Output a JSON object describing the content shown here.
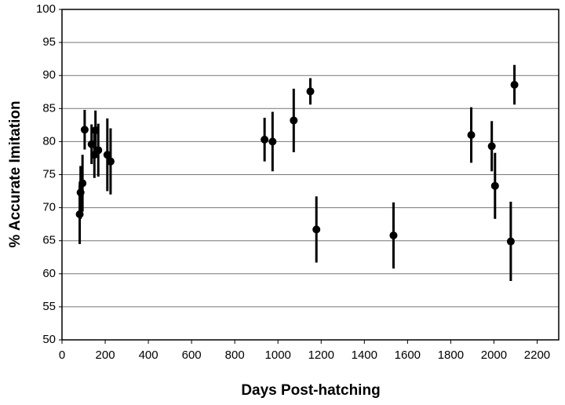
{
  "chart_data": {
    "type": "scatter",
    "x_label": "Days Post-hatching",
    "y_label": "% Accurate Imitation",
    "x": [
      82,
      86,
      95,
      105,
      137,
      150,
      155,
      168,
      210,
      225,
      938,
      975,
      1073,
      1150,
      1178,
      1535,
      1895,
      1990,
      2005,
      2078,
      2095
    ],
    "values": [
      69.0,
      72.3,
      73.7,
      81.8,
      79.6,
      78.0,
      81.7,
      78.7,
      78.0,
      77.0,
      80.3,
      80.0,
      83.2,
      87.6,
      66.7,
      65.8,
      81.0,
      79.3,
      73.3,
      64.9,
      88.6
    ],
    "errors": [
      4.5,
      4.0,
      4.3,
      3.0,
      3.0,
      3.5,
      3.0,
      4.0,
      5.5,
      5.0,
      3.3,
      4.5,
      4.8,
      2.0,
      5.0,
      5.0,
      4.2,
      3.8,
      5.0,
      6.0,
      3.0
    ],
    "color": "#000000",
    "xlim": [
      0,
      2300
    ],
    "ylim": [
      50,
      100
    ],
    "xticks": [
      0,
      200,
      400,
      600,
      800,
      1000,
      1200,
      1400,
      1600,
      1800,
      2000,
      2200
    ],
    "yticks": [
      50,
      55,
      60,
      65,
      70,
      75,
      80,
      85,
      90,
      95,
      100
    ],
    "grid": true
  }
}
